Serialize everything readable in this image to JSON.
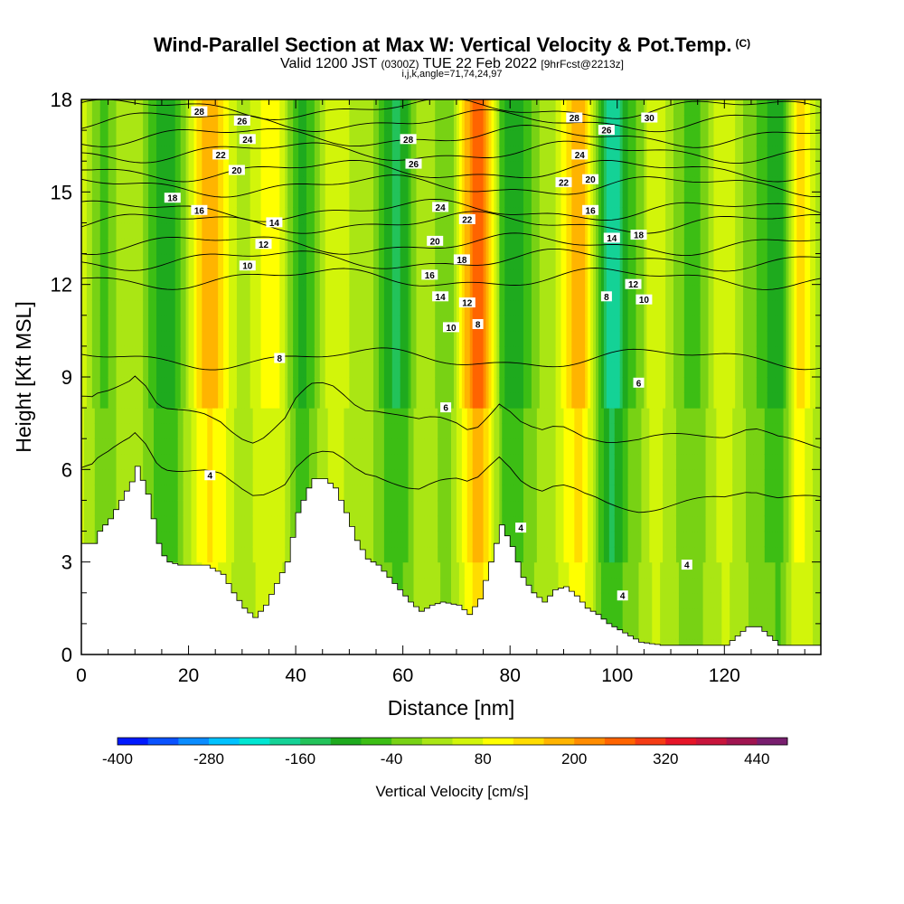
{
  "header": {
    "title": "Wind-Parallel Section at Max W: Vertical Velocity & Pot.Temp.",
    "copyright": "(C)",
    "valid_prefix": "Valid 1200 JST",
    "valid_zulu": "(0300Z)",
    "valid_date": "TUE 22 Feb 2022",
    "forecast": "[9hrFcst@2213z]",
    "indices": "i,j,k,angle=71,74,24,97"
  },
  "colors": {
    "palette": [
      "#0019ff",
      "#0a52ff",
      "#0a8cff",
      "#00c2ff",
      "#00e6d2",
      "#14d296",
      "#23c35a",
      "#1eaa1e",
      "#3cbe14",
      "#78d214",
      "#aae614",
      "#d2f50a",
      "#ffff00",
      "#ffdc00",
      "#ffb400",
      "#ff8c00",
      "#ff6400",
      "#f53c14",
      "#e61428",
      "#c8143c",
      "#a01450",
      "#781e6e",
      "#5a1e82"
    ]
  },
  "chart_data": {
    "type": "heatmap",
    "xlabel": "Distance [nm]",
    "ylabel": "Height [Kft MSL]",
    "xlim": [
      0,
      138
    ],
    "ylim": [
      0,
      18
    ],
    "xticks": [
      "0",
      "20",
      "40",
      "60",
      "80",
      "100",
      "120"
    ],
    "yticks": [
      "0",
      "3",
      "6",
      "9",
      "12",
      "15",
      "18"
    ],
    "colorbar": {
      "label": "Vertical Velocity [cm/s]",
      "range": [
        -400,
        480
      ],
      "step": 40,
      "tick_labels": [
        "-400",
        "-280",
        "-160",
        "-40",
        "80",
        "200",
        "320",
        "440"
      ]
    },
    "field_columns": [
      {
        "x": 0,
        "w": 60
      },
      {
        "x": 4,
        "w": -50
      },
      {
        "x": 9,
        "w": 40
      },
      {
        "x": 16,
        "w": -110
      },
      {
        "x": 24,
        "w": 180
      },
      {
        "x": 30,
        "w": 30
      },
      {
        "x": 36,
        "w": 110
      },
      {
        "x": 41,
        "w": -90
      },
      {
        "x": 47,
        "w": 60
      },
      {
        "x": 53,
        "w": 20
      },
      {
        "x": 59,
        "w": -130
      },
      {
        "x": 64,
        "w": 40
      },
      {
        "x": 68,
        "w": -40
      },
      {
        "x": 74,
        "w": 260
      },
      {
        "x": 80,
        "w": -120
      },
      {
        "x": 87,
        "w": 20
      },
      {
        "x": 93,
        "w": 190
      },
      {
        "x": 99,
        "w": -200
      },
      {
        "x": 103,
        "w": -50
      },
      {
        "x": 107,
        "w": 70
      },
      {
        "x": 114,
        "w": -60
      },
      {
        "x": 120,
        "w": 70
      },
      {
        "x": 126,
        "w": -40
      },
      {
        "x": 130,
        "w": -120
      },
      {
        "x": 134,
        "w": 140
      },
      {
        "x": 138,
        "w": 20
      }
    ],
    "terrain": [
      {
        "x": 0,
        "h": 3.6
      },
      {
        "x": 2,
        "h": 3.6
      },
      {
        "x": 3,
        "h": 4.0
      },
      {
        "x": 5,
        "h": 4.4
      },
      {
        "x": 7,
        "h": 5.0
      },
      {
        "x": 9,
        "h": 5.6
      },
      {
        "x": 10,
        "h": 6.1
      },
      {
        "x": 12,
        "h": 5.2
      },
      {
        "x": 13,
        "h": 4.4
      },
      {
        "x": 14,
        "h": 3.6
      },
      {
        "x": 15,
        "h": 3.2
      },
      {
        "x": 16,
        "h": 3.0
      },
      {
        "x": 18,
        "h": 2.9
      },
      {
        "x": 20,
        "h": 2.9
      },
      {
        "x": 23,
        "h": 2.9
      },
      {
        "x": 26,
        "h": 2.6
      },
      {
        "x": 28,
        "h": 2.0
      },
      {
        "x": 30,
        "h": 1.5
      },
      {
        "x": 32,
        "h": 1.2
      },
      {
        "x": 34,
        "h": 1.6
      },
      {
        "x": 36,
        "h": 2.3
      },
      {
        "x": 38,
        "h": 3.0
      },
      {
        "x": 39,
        "h": 3.8
      },
      {
        "x": 40,
        "h": 4.6
      },
      {
        "x": 42,
        "h": 5.4
      },
      {
        "x": 43,
        "h": 5.7
      },
      {
        "x": 45,
        "h": 5.7
      },
      {
        "x": 47,
        "h": 5.4
      },
      {
        "x": 49,
        "h": 4.6
      },
      {
        "x": 51,
        "h": 3.7
      },
      {
        "x": 53,
        "h": 3.1
      },
      {
        "x": 55,
        "h": 2.9
      },
      {
        "x": 57,
        "h": 2.5
      },
      {
        "x": 59,
        "h": 2.1
      },
      {
        "x": 61,
        "h": 1.7
      },
      {
        "x": 63,
        "h": 1.4
      },
      {
        "x": 65,
        "h": 1.6
      },
      {
        "x": 67,
        "h": 1.7
      },
      {
        "x": 70,
        "h": 1.6
      },
      {
        "x": 72,
        "h": 1.3
      },
      {
        "x": 74,
        "h": 1.8
      },
      {
        "x": 76,
        "h": 3.0
      },
      {
        "x": 78,
        "h": 4.2
      },
      {
        "x": 80,
        "h": 3.5
      },
      {
        "x": 82,
        "h": 2.5
      },
      {
        "x": 84,
        "h": 2.0
      },
      {
        "x": 86,
        "h": 1.7
      },
      {
        "x": 88,
        "h": 2.1
      },
      {
        "x": 90,
        "h": 2.2
      },
      {
        "x": 92,
        "h": 1.9
      },
      {
        "x": 94,
        "h": 1.5
      },
      {
        "x": 96,
        "h": 1.3
      },
      {
        "x": 98,
        "h": 1.0
      },
      {
        "x": 100,
        "h": 0.8
      },
      {
        "x": 102,
        "h": 0.6
      },
      {
        "x": 104,
        "h": 0.4
      },
      {
        "x": 108,
        "h": 0.3
      },
      {
        "x": 120,
        "h": 0.3
      },
      {
        "x": 122,
        "h": 0.6
      },
      {
        "x": 124,
        "h": 0.9
      },
      {
        "x": 126,
        "h": 0.9
      },
      {
        "x": 128,
        "h": 0.6
      },
      {
        "x": 130,
        "h": 0.3
      },
      {
        "x": 138,
        "h": 0.3
      }
    ],
    "theta_levels": [
      {
        "label": "4",
        "x_label": 24,
        "y_label": 5.8,
        "base": 5.5
      },
      {
        "label": "6",
        "x_label": 68,
        "y_label": 8.0,
        "base": 7.5
      },
      {
        "label": "8",
        "x_label": 37,
        "y_label": 9.6,
        "base": 9.6
      },
      {
        "label": "10",
        "x_label": 31,
        "y_label": 12.6,
        "base": 12.2
      },
      {
        "label": "12",
        "x_label": 34,
        "y_label": 13.3,
        "base": 12.8
      },
      {
        "label": "14",
        "x_label": 36,
        "y_label": 14.0,
        "base": 13.3
      },
      {
        "label": "16",
        "x_label": 22,
        "y_label": 14.4,
        "base": 14.0
      },
      {
        "label": "18",
        "x_label": 17,
        "y_label": 14.8,
        "base": 14.4
      },
      {
        "label": "20",
        "x_label": 29,
        "y_label": 15.7,
        "base": 15.2
      },
      {
        "label": "22",
        "x_label": 26,
        "y_label": 16.2,
        "base": 15.7
      },
      {
        "label": "24",
        "x_label": 31,
        "y_label": 16.7,
        "base": 16.3
      },
      {
        "label": "26",
        "x_label": 30,
        "y_label": 17.3,
        "base": 16.8
      },
      {
        "label": "28",
        "x_label": 22,
        "y_label": 17.6,
        "base": 17.3
      },
      {
        "label": "30",
        "x_label": 106,
        "y_label": 17.4,
        "base": 17.7
      }
    ],
    "extra_contour_labels": [
      {
        "label": "28",
        "x": 61,
        "y": 16.7
      },
      {
        "label": "26",
        "x": 62,
        "y": 15.9
      },
      {
        "label": "24",
        "x": 67,
        "y": 14.5
      },
      {
        "label": "22",
        "x": 72,
        "y": 14.1
      },
      {
        "label": "20",
        "x": 66,
        "y": 13.4
      },
      {
        "label": "18",
        "x": 71,
        "y": 12.8
      },
      {
        "label": "16",
        "x": 65,
        "y": 12.3
      },
      {
        "label": "14",
        "x": 67,
        "y": 11.6
      },
      {
        "label": "12",
        "x": 72,
        "y": 11.4
      },
      {
        "label": "10",
        "x": 69,
        "y": 10.6
      },
      {
        "label": "8",
        "x": 74,
        "y": 10.7
      },
      {
        "label": "28",
        "x": 92,
        "y": 17.4
      },
      {
        "label": "26",
        "x": 98,
        "y": 17.0
      },
      {
        "label": "24",
        "x": 93,
        "y": 16.2
      },
      {
        "label": "22",
        "x": 90,
        "y": 15.3
      },
      {
        "label": "20",
        "x": 95,
        "y": 15.4
      },
      {
        "label": "16",
        "x": 95,
        "y": 14.4
      },
      {
        "label": "14",
        "x": 99,
        "y": 13.5
      },
      {
        "label": "18",
        "x": 104,
        "y": 13.6
      },
      {
        "label": "12",
        "x": 103,
        "y": 12.0
      },
      {
        "label": "10",
        "x": 105,
        "y": 11.5
      },
      {
        "label": "8",
        "x": 98,
        "y": 11.6
      },
      {
        "label": "6",
        "x": 104,
        "y": 8.8
      },
      {
        "label": "4",
        "x": 82,
        "y": 4.1
      },
      {
        "label": "4",
        "x": 101,
        "y": 1.9
      },
      {
        "label": "4",
        "x": 113,
        "y": 2.9
      }
    ]
  }
}
